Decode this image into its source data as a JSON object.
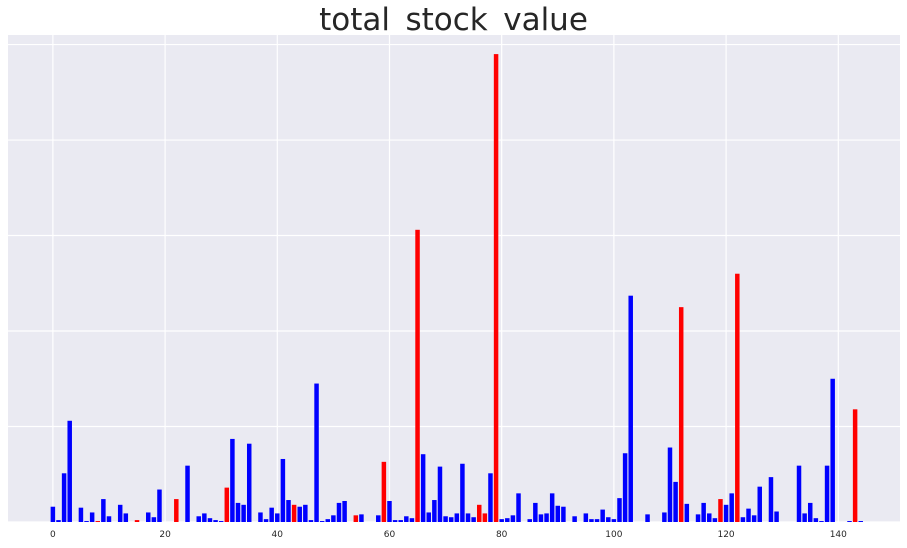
{
  "chart_data": {
    "type": "bar",
    "title": "total_stock_value",
    "xlabel": "",
    "ylabel": "",
    "xlim": [
      -8,
      151
    ],
    "ylim": [
      0,
      51
    ],
    "x_ticks": [
      0,
      20,
      40,
      60,
      80,
      100,
      120,
      140
    ],
    "y_tick_labels_shown": false,
    "grid": true,
    "colors": {
      "blue": "#0000ff",
      "red": "#ff0000",
      "background": "#eaeaf2",
      "grid": "#ffffff"
    },
    "x": [
      0,
      1,
      2,
      3,
      4,
      5,
      6,
      7,
      8,
      9,
      10,
      11,
      12,
      13,
      14,
      15,
      16,
      17,
      18,
      19,
      20,
      21,
      22,
      23,
      24,
      25,
      26,
      27,
      28,
      29,
      30,
      31,
      32,
      33,
      34,
      35,
      36,
      37,
      38,
      39,
      40,
      41,
      42,
      43,
      44,
      45,
      46,
      47,
      48,
      49,
      50,
      51,
      52,
      53,
      54,
      55,
      56,
      57,
      58,
      59,
      60,
      61,
      62,
      63,
      64,
      65,
      66,
      67,
      68,
      69,
      70,
      71,
      72,
      73,
      74,
      75,
      76,
      77,
      78,
      79,
      80,
      81,
      82,
      83,
      84,
      85,
      86,
      87,
      88,
      89,
      90,
      91,
      92,
      93,
      94,
      95,
      96,
      97,
      98,
      99,
      100,
      101,
      102,
      103,
      104,
      105,
      106,
      107,
      108,
      109,
      110,
      111,
      112,
      113,
      114,
      115,
      116,
      117,
      118,
      119,
      120,
      121,
      122,
      123,
      124,
      125,
      126,
      127,
      128,
      129,
      130,
      131,
      132,
      133,
      134,
      135,
      136,
      137,
      138,
      139,
      140,
      141,
      142,
      143,
      144,
      145
    ],
    "values": [
      1.6,
      0.2,
      5.1,
      10.6,
      0,
      1.5,
      0.1,
      1.0,
      0.1,
      2.4,
      0.6,
      0,
      1.8,
      0.9,
      0,
      0.2,
      0,
      1.0,
      0.5,
      3.4,
      0,
      0,
      2.4,
      0,
      5.9,
      0,
      0.6,
      0.9,
      0.4,
      0.2,
      0.1,
      3.6,
      8.7,
      2.0,
      1.8,
      8.2,
      0,
      1.0,
      0.3,
      1.5,
      0.9,
      6.6,
      2.3,
      1.8,
      1.6,
      1.8,
      0.2,
      14.5,
      0.1,
      0.3,
      0.7,
      2.0,
      2.2,
      0,
      0.7,
      0.8,
      0,
      0,
      0.7,
      6.3,
      2.2,
      0.2,
      0.2,
      0.6,
      0.4,
      30.6,
      7.1,
      1.0,
      2.3,
      5.8,
      0.6,
      0.5,
      0.9,
      6.1,
      0.9,
      0.5,
      1.8,
      0.9,
      5.1,
      49.0,
      0.3,
      0.4,
      0.7,
      3.0,
      0,
      0.3,
      2.0,
      0.8,
      0.9,
      3.0,
      1.7,
      1.6,
      0,
      0.6,
      0,
      0.9,
      0.3,
      0.3,
      1.3,
      0.5,
      0.3,
      2.5,
      7.2,
      23.7,
      0,
      0,
      0.8,
      0,
      0,
      1.0,
      7.8,
      4.2,
      22.5,
      1.9,
      0,
      0.8,
      2.0,
      0.9,
      0.4,
      2.4,
      1.8,
      3.0,
      26.0,
      0.5,
      1.4,
      0.7,
      3.7,
      0,
      4.7,
      1.1,
      0,
      0,
      0,
      5.9,
      0.9,
      2.0,
      0.4,
      0.1,
      5.9,
      15.0,
      0,
      0,
      0.1,
      11.8,
      0.1,
      0
    ],
    "highlight_red_indices": [
      8,
      15,
      22,
      31,
      43,
      54,
      59,
      65,
      76,
      77,
      79,
      112,
      119,
      122,
      143
    ]
  }
}
